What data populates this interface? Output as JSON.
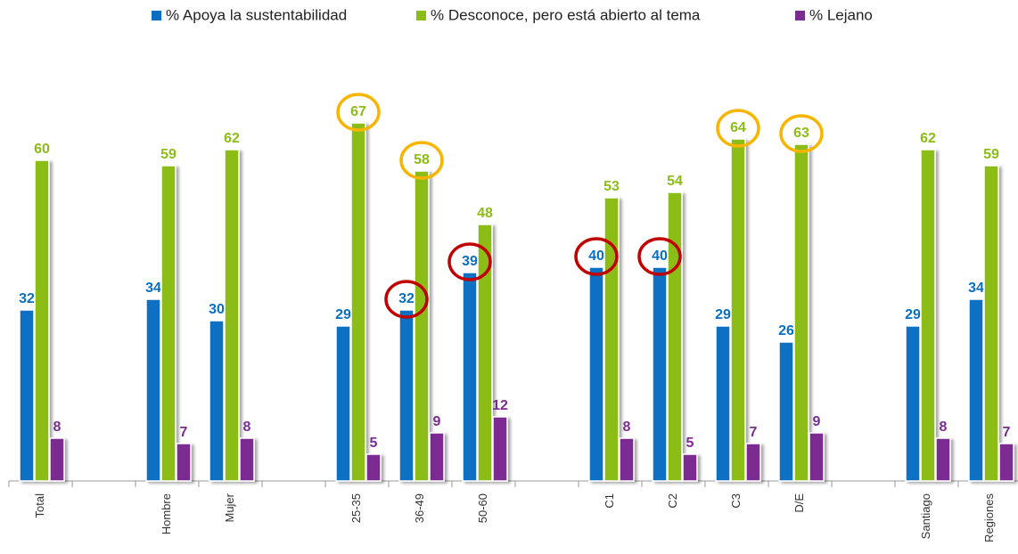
{
  "chart_data": {
    "type": "bar",
    "categories": [
      "Total",
      null,
      "Hombre",
      "Mujer",
      null,
      "25-35",
      "36-49",
      "50-60",
      null,
      "C1",
      "C2",
      "C3",
      "D/E",
      null,
      "Santiago",
      "Regiones"
    ],
    "series": [
      {
        "name": "% Apoya la sustentabilidad",
        "color": "#0a6fc2",
        "values": [
          32,
          null,
          34,
          30,
          null,
          29,
          32,
          39,
          null,
          40,
          40,
          29,
          26,
          null,
          29,
          34
        ]
      },
      {
        "name": "% Desconoce, pero está abierto al tema",
        "color": "#8cbd16",
        "values": [
          60,
          null,
          59,
          62,
          null,
          67,
          58,
          48,
          null,
          53,
          54,
          64,
          63,
          null,
          62,
          59
        ]
      },
      {
        "name": "% Lejano",
        "color": "#7a2c91",
        "values": [
          8,
          null,
          7,
          8,
          null,
          5,
          9,
          12,
          null,
          8,
          5,
          7,
          9,
          null,
          8,
          7
        ]
      }
    ],
    "ylim": [
      0,
      90
    ],
    "legend": "top",
    "highlights": [
      {
        "series": 1,
        "index": 5,
        "color": "#f7b500"
      },
      {
        "series": 1,
        "index": 6,
        "color": "#f7b500"
      },
      {
        "series": 1,
        "index": 11,
        "color": "#f7b500"
      },
      {
        "series": 1,
        "index": 12,
        "color": "#f7b500"
      },
      {
        "series": 0,
        "index": 6,
        "color": "#c00000"
      },
      {
        "series": 0,
        "index": 7,
        "color": "#c00000"
      },
      {
        "series": 0,
        "index": 9,
        "color": "#c00000"
      },
      {
        "series": 0,
        "index": 10,
        "color": "#c00000"
      }
    ]
  }
}
